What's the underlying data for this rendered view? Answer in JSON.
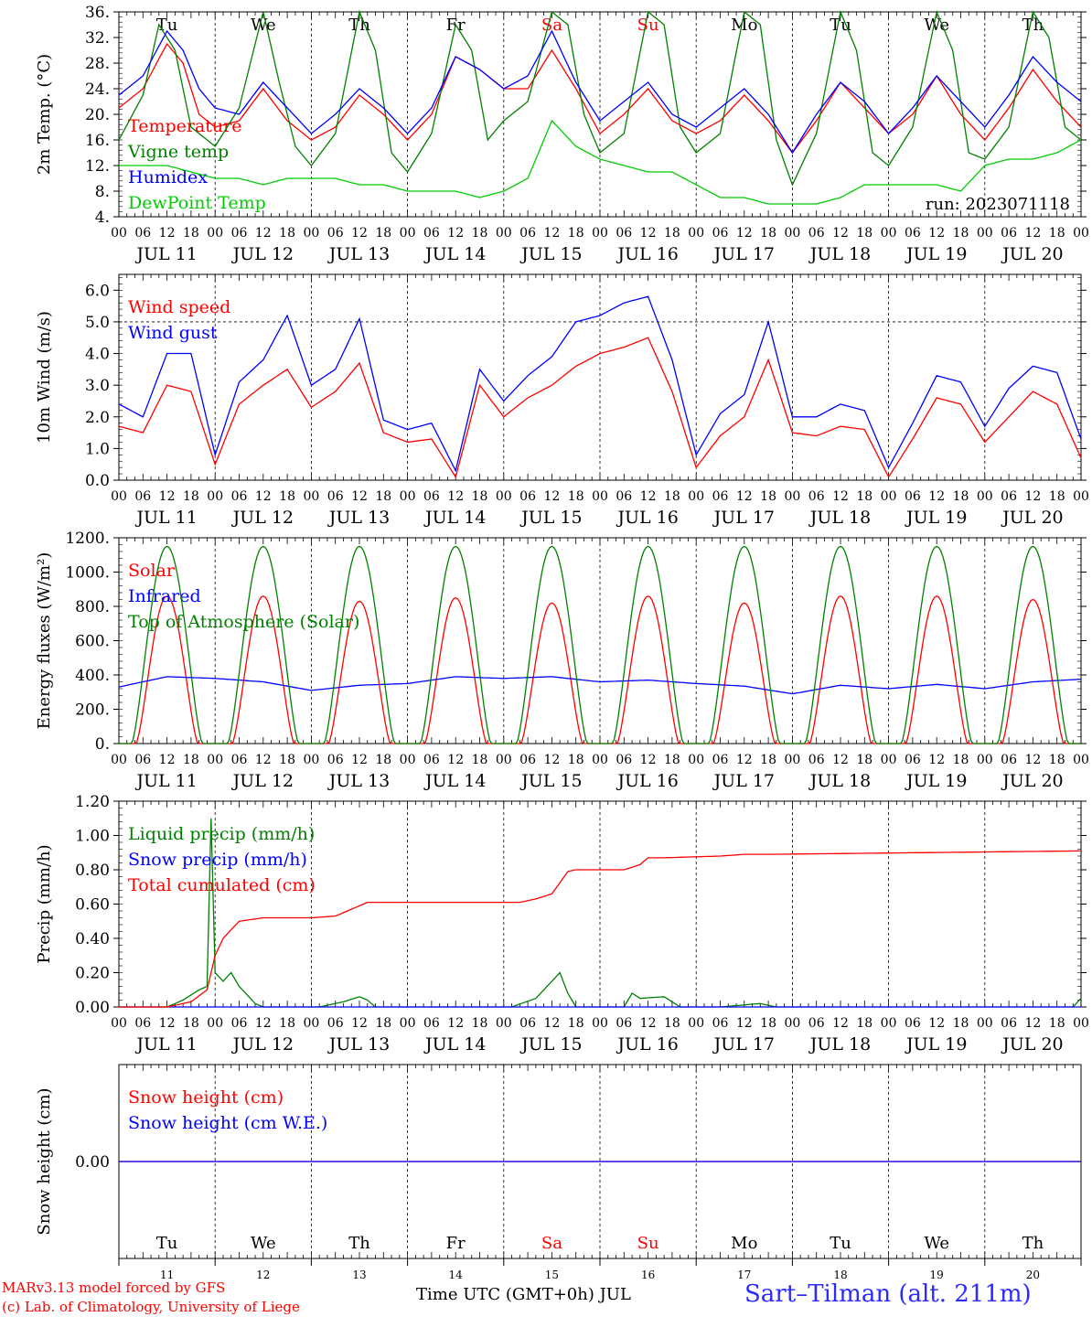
{
  "footer": {
    "model_line": "MARv3.13 model forced by GFS",
    "lab_line": "(c) Lab. of Climatology, University of Liege",
    "axis_title": "Time UTC (GMT+0h) JUL",
    "station": "Sart–Tilman (alt. 211m)"
  },
  "colors": {
    "red": "#ff0000",
    "blue": "#0000ff",
    "green": "#008000",
    "lightgreen": "#00cc00",
    "purple": "#800080"
  },
  "chart_data": [
    {
      "type": "line",
      "ylabel": "2m Temp. (°C)",
      "ylim": [
        4,
        36
      ],
      "yticks": [
        "4.",
        "8.",
        "12.",
        "16.",
        "20.",
        "24.",
        "28.",
        "32.",
        "36."
      ],
      "weekday_labels": [
        "Tu",
        "We",
        "Th",
        "Fr",
        "Sa",
        "Su",
        "Mo",
        "Tu",
        "We",
        "Th"
      ],
      "weekday_colors": [
        "#000000",
        "#000000",
        "#000000",
        "#000000",
        "#ff0000",
        "#ff0000",
        "#000000",
        "#000000",
        "#000000",
        "#000000"
      ],
      "run_label": "run: 2023071118",
      "x_hours_label": [
        "00",
        "06",
        "12",
        "18"
      ],
      "day_labels": [
        "JUL 11",
        "JUL 12",
        "JUL 13",
        "JUL 14",
        "JUL 15",
        "JUL 16",
        "JUL 17",
        "JUL 18",
        "JUL 19",
        "JUL 20"
      ],
      "series": [
        {
          "name": "Temperature",
          "color": "#ff0000",
          "x": [
            0,
            6,
            12,
            16,
            20,
            24,
            30,
            36,
            42,
            48,
            54,
            60,
            66,
            72,
            78,
            84,
            90,
            96,
            102,
            108,
            114,
            120,
            126,
            132,
            138,
            144,
            150,
            156,
            162,
            168,
            174,
            180,
            186,
            192,
            198,
            204,
            210,
            216,
            222,
            228,
            234,
            240
          ],
          "values": [
            21,
            24,
            31,
            28,
            20,
            18,
            19,
            24,
            19,
            16,
            18,
            23,
            20,
            16,
            20,
            29,
            27,
            24,
            24,
            30,
            24,
            17,
            20,
            24,
            19,
            17,
            19,
            23,
            19,
            14,
            19,
            25,
            21,
            17,
            20,
            26,
            20,
            16,
            21,
            27,
            22,
            18
          ]
        },
        {
          "name": "Vigne temp",
          "color": "#008000",
          "x": [
            0,
            6,
            10,
            14,
            18,
            22,
            24,
            30,
            36,
            40,
            44,
            48,
            54,
            60,
            64,
            68,
            72,
            78,
            84,
            88,
            92,
            96,
            102,
            108,
            112,
            116,
            120,
            126,
            132,
            136,
            140,
            144,
            150,
            156,
            160,
            164,
            168,
            174,
            180,
            184,
            188,
            192,
            198,
            204,
            208,
            212,
            216,
            222,
            228,
            232,
            236,
            240
          ],
          "values": [
            16,
            23,
            34,
            30,
            18,
            16,
            15,
            21,
            36,
            25,
            15,
            12,
            17,
            36,
            30,
            14,
            11,
            17,
            34,
            30,
            16,
            19,
            22,
            36,
            34,
            20,
            14,
            17,
            36,
            34,
            18,
            14,
            17,
            36,
            34,
            16,
            9,
            17,
            36,
            30,
            14,
            12,
            18,
            36,
            30,
            14,
            13,
            18,
            36,
            32,
            18,
            16
          ]
        },
        {
          "name": "Humidex",
          "color": "#0000ff",
          "x": [
            0,
            6,
            12,
            16,
            20,
            24,
            30,
            36,
            42,
            48,
            54,
            60,
            66,
            72,
            78,
            84,
            90,
            96,
            102,
            108,
            114,
            120,
            126,
            132,
            138,
            144,
            150,
            156,
            162,
            168,
            174,
            180,
            186,
            192,
            198,
            204,
            210,
            216,
            222,
            228,
            234,
            240
          ],
          "values": [
            23,
            26,
            33,
            30,
            24,
            21,
            20,
            25,
            21,
            17,
            20,
            24,
            21,
            17,
            21,
            29,
            27,
            24,
            26,
            33,
            25,
            19,
            22,
            25,
            20,
            18,
            21,
            24,
            20,
            14,
            20,
            25,
            22,
            17,
            21,
            26,
            22,
            18,
            23,
            29,
            25,
            22
          ]
        },
        {
          "name": "DewPoint Temp",
          "color": "#00cc00",
          "x": [
            0,
            6,
            12,
            18,
            24,
            30,
            36,
            42,
            48,
            54,
            60,
            66,
            72,
            78,
            84,
            90,
            96,
            102,
            108,
            114,
            120,
            126,
            132,
            138,
            144,
            150,
            156,
            162,
            168,
            174,
            180,
            186,
            192,
            198,
            204,
            210,
            216,
            222,
            228,
            234,
            240
          ],
          "values": [
            12,
            12,
            12,
            11,
            10,
            10,
            9,
            10,
            10,
            10,
            9,
            9,
            8,
            8,
            8,
            7,
            8,
            10,
            19,
            15,
            13,
            12,
            11,
            11,
            9,
            7,
            7,
            6,
            6,
            6,
            7,
            9,
            9,
            9,
            9,
            8,
            12,
            13,
            13,
            14,
            16
          ]
        }
      ]
    },
    {
      "type": "line",
      "ylabel": "10m Wind (m/s)",
      "ylim": [
        0,
        6.5
      ],
      "yticks": [
        "0.0",
        "1.0",
        "2.0",
        "3.0",
        "4.0",
        "5.0",
        "6.0"
      ],
      "reference_line": 5.0,
      "day_labels": [
        "JUL 11",
        "JUL 12",
        "JUL 13",
        "JUL 14",
        "JUL 15",
        "JUL 16",
        "JUL 17",
        "JUL 18",
        "JUL 19",
        "JUL 20"
      ],
      "series": [
        {
          "name": "Wind speed",
          "color": "#ff0000",
          "x": [
            0,
            6,
            12,
            18,
            24,
            30,
            36,
            42,
            48,
            54,
            60,
            66,
            72,
            78,
            84,
            90,
            96,
            102,
            108,
            114,
            120,
            126,
            132,
            138,
            144,
            150,
            156,
            162,
            168,
            174,
            180,
            186,
            192,
            198,
            204,
            210,
            216,
            222,
            228,
            234,
            240
          ],
          "values": [
            1.7,
            1.5,
            3.0,
            2.8,
            0.5,
            2.4,
            3.0,
            3.5,
            2.3,
            2.8,
            3.7,
            1.5,
            1.2,
            1.3,
            0.1,
            3.0,
            2.0,
            2.6,
            3.0,
            3.6,
            4.0,
            4.2,
            4.5,
            2.8,
            0.4,
            1.4,
            2.0,
            3.8,
            1.5,
            1.4,
            1.7,
            1.6,
            0.1,
            1.3,
            2.6,
            2.4,
            1.2,
            2.0,
            2.8,
            2.4,
            0.7
          ]
        },
        {
          "name": "Wind gust",
          "color": "#0000ff",
          "x": [
            0,
            6,
            12,
            18,
            24,
            30,
            36,
            42,
            48,
            54,
            60,
            66,
            72,
            78,
            84,
            90,
            96,
            102,
            108,
            114,
            120,
            126,
            132,
            138,
            144,
            150,
            156,
            162,
            168,
            174,
            180,
            186,
            192,
            198,
            204,
            210,
            216,
            222,
            228,
            234,
            240
          ],
          "values": [
            2.4,
            2.0,
            4.0,
            4.0,
            0.8,
            3.1,
            3.8,
            5.2,
            3.0,
            3.5,
            5.1,
            1.9,
            1.6,
            1.8,
            0.3,
            3.5,
            2.5,
            3.3,
            3.9,
            5.0,
            5.2,
            5.6,
            5.8,
            3.8,
            0.8,
            2.1,
            2.7,
            5.0,
            2.0,
            2.0,
            2.4,
            2.2,
            0.4,
            1.8,
            3.3,
            3.1,
            1.7,
            2.9,
            3.6,
            3.4,
            1.3
          ]
        }
      ]
    },
    {
      "type": "line",
      "ylabel": "Energy fluxes (W/m²)",
      "ylim": [
        0,
        1200
      ],
      "yticks": [
        "0.",
        "200.",
        "400.",
        "600.",
        "800.",
        "1000.",
        "1200."
      ],
      "day_labels": [
        "JUL 11",
        "JUL 12",
        "JUL 13",
        "JUL 14",
        "JUL 15",
        "JUL 16",
        "JUL 17",
        "JUL 18",
        "JUL 19",
        "JUL 20"
      ],
      "series": [
        {
          "name": "Solar",
          "color": "#ff0000",
          "daily_peak": [
            860,
            860,
            830,
            850,
            820,
            860,
            820,
            860,
            860,
            840
          ]
        },
        {
          "name": "Infrared",
          "color": "#0000ff",
          "x": [
            0,
            12,
            24,
            36,
            48,
            60,
            72,
            84,
            96,
            108,
            120,
            132,
            144,
            156,
            168,
            180,
            192,
            204,
            216,
            228,
            240
          ],
          "values": [
            330,
            390,
            380,
            360,
            310,
            340,
            350,
            390,
            380,
            390,
            360,
            370,
            350,
            335,
            290,
            340,
            320,
            345,
            320,
            360,
            375
          ]
        },
        {
          "name": "Top of Atmosphere (Solar)",
          "color": "#008000",
          "daily_peak": [
            1150,
            1150,
            1150,
            1150,
            1150,
            1150,
            1150,
            1150,
            1150,
            1150
          ]
        }
      ]
    },
    {
      "type": "line",
      "ylabel": "Precip (mm/h)",
      "ylim": [
        0,
        1.2
      ],
      "yticks": [
        "0.00",
        "0.20",
        "0.40",
        "0.60",
        "0.80",
        "1.00",
        "1.20"
      ],
      "day_labels": [
        "JUL 11",
        "JUL 12",
        "JUL 13",
        "JUL 14",
        "JUL 15",
        "JUL 16",
        "JUL 17",
        "JUL 18",
        "JUL 19",
        "JUL 20"
      ],
      "series": [
        {
          "name": "Liquid precip (mm/h)",
          "color": "#008000",
          "x": [
            0,
            12,
            16,
            20,
            22,
            23,
            24,
            26,
            28,
            30,
            34,
            36,
            50,
            56,
            60,
            62,
            64,
            98,
            104,
            108,
            110,
            112,
            114,
            126,
            128,
            130,
            136,
            138,
            140,
            150,
            160,
            162,
            164,
            238,
            240
          ],
          "values": [
            0,
            0,
            0.04,
            0.1,
            0.12,
            1.1,
            0.2,
            0.15,
            0.2,
            0.12,
            0.02,
            0,
            0,
            0.03,
            0.06,
            0.04,
            0,
            0,
            0.05,
            0.15,
            0.2,
            0.08,
            0,
            0,
            0.08,
            0.05,
            0.06,
            0.03,
            0,
            0,
            0.02,
            0.01,
            0,
            0,
            0.05
          ]
        },
        {
          "name": "Snow precip (mm/h)",
          "color": "#0000ff",
          "x": [
            0,
            240
          ],
          "values": [
            0,
            0
          ]
        },
        {
          "name": "Total cumulated (cm)",
          "color": "#ff0000",
          "x": [
            0,
            12,
            18,
            22,
            24,
            26,
            30,
            36,
            48,
            54,
            60,
            62,
            96,
            100,
            104,
            108,
            112,
            114,
            120,
            126,
            130,
            132,
            136,
            150,
            156,
            162,
            240
          ],
          "values": [
            0,
            0,
            0.03,
            0.1,
            0.3,
            0.4,
            0.5,
            0.52,
            0.52,
            0.53,
            0.59,
            0.61,
            0.61,
            0.61,
            0.63,
            0.66,
            0.79,
            0.8,
            0.8,
            0.8,
            0.83,
            0.87,
            0.87,
            0.88,
            0.89,
            0.89,
            0.91
          ]
        }
      ]
    },
    {
      "type": "line",
      "ylabel": "Snow height (cm)",
      "ylim": [
        -1,
        1
      ],
      "yticks": [
        "0.00"
      ],
      "weekday_labels": [
        "Tu",
        "We",
        "Th",
        "Fr",
        "Sa",
        "Su",
        "Mo",
        "Tu",
        "We",
        "Th"
      ],
      "day_numbers": [
        "11",
        "12",
        "13",
        "14",
        "15",
        "16",
        "17",
        "18",
        "19",
        "20"
      ],
      "series": [
        {
          "name": "Snow height (cm)",
          "color": "#ff0000",
          "x": [
            0,
            240
          ],
          "values": [
            0,
            0
          ]
        },
        {
          "name": "Snow height (cm W.E.)",
          "color": "#0000ff",
          "x": [
            0,
            240
          ],
          "values": [
            0,
            0
          ]
        }
      ]
    }
  ]
}
